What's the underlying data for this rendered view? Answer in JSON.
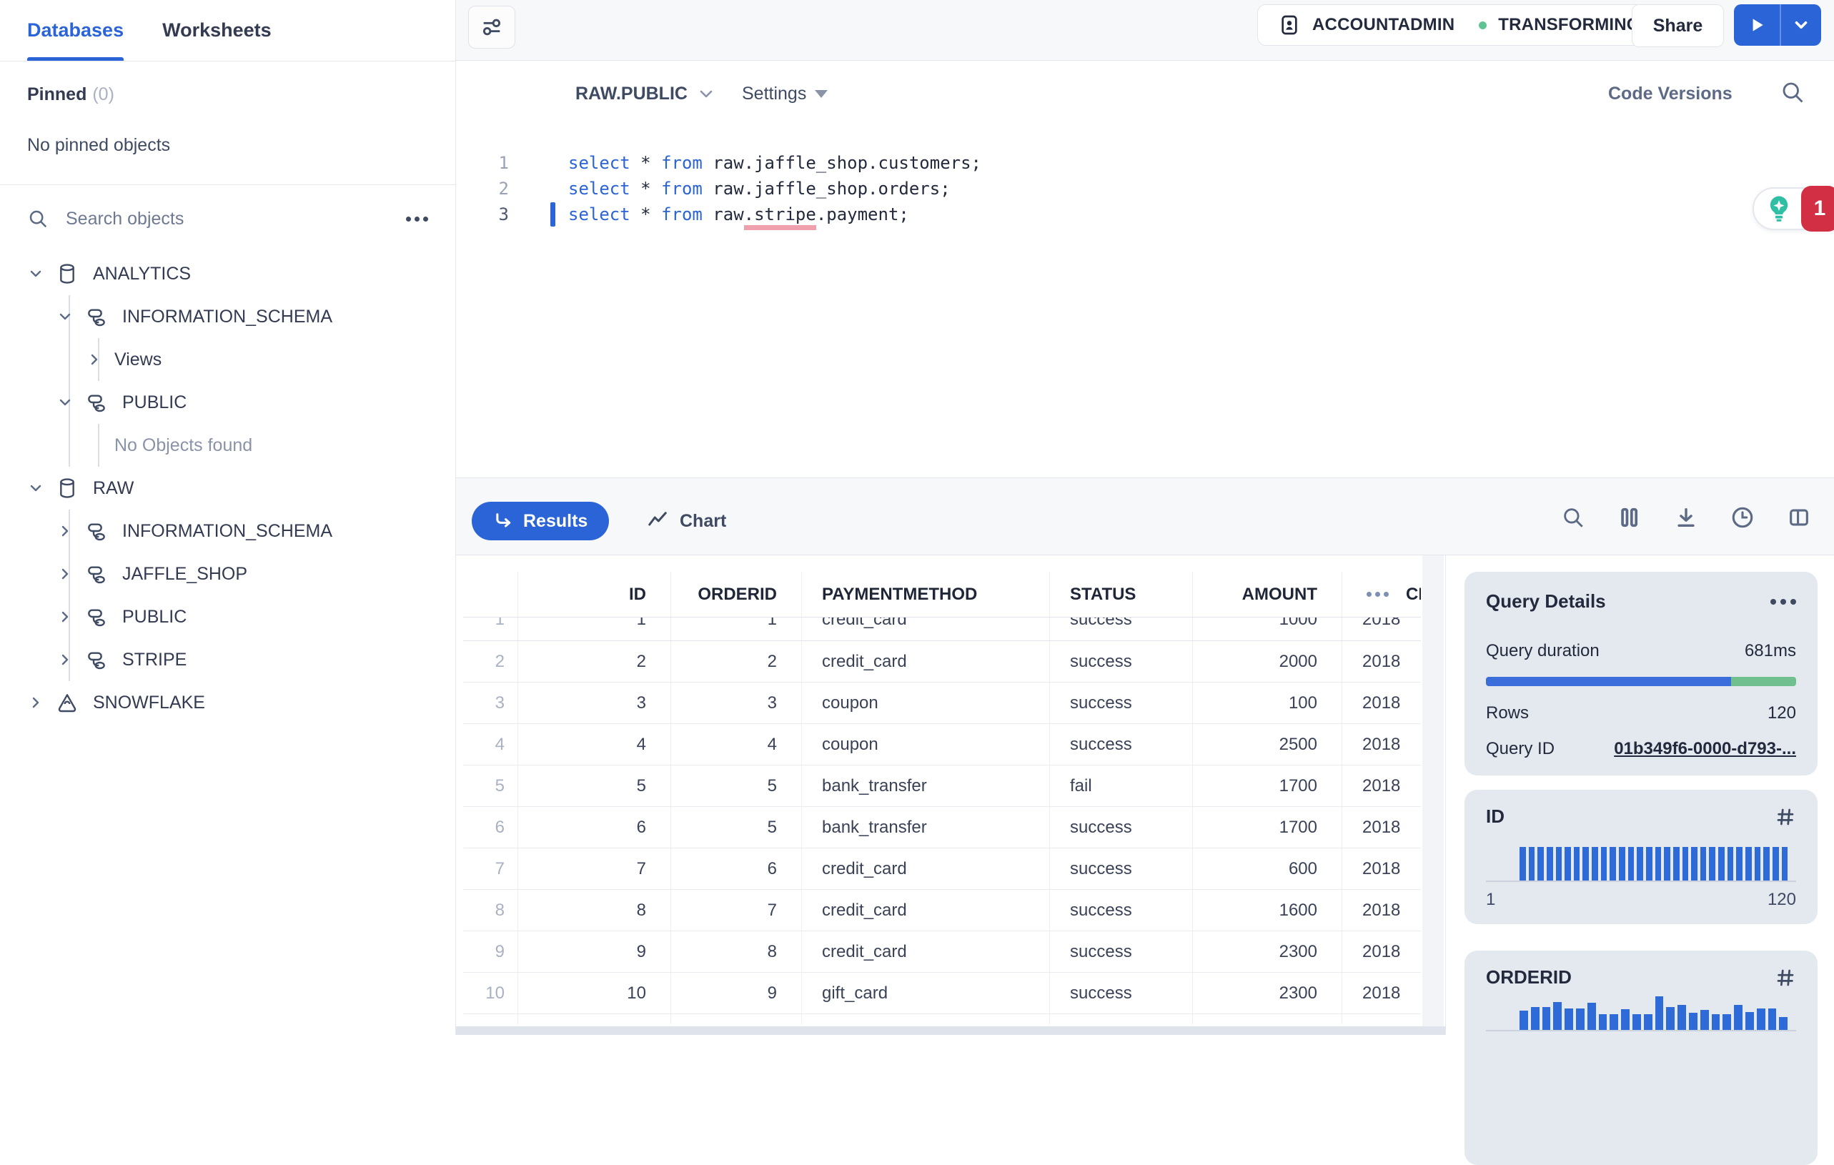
{
  "sidebar": {
    "tabs": [
      {
        "label": "Databases",
        "active": true
      },
      {
        "label": "Worksheets",
        "active": false
      }
    ],
    "pinned_label": "Pinned",
    "pinned_count": "(0)",
    "no_pinned_text": "No pinned objects",
    "search_placeholder": "Search objects",
    "tree": [
      {
        "label": "ANALYTICS",
        "level": 0,
        "chevron": "expanded",
        "icon": "database"
      },
      {
        "label": "INFORMATION_SCHEMA",
        "level": 1,
        "chevron": "expanded",
        "icon": "schema"
      },
      {
        "label": "Views",
        "level": 2,
        "chevron": "collapsed",
        "icon": null
      },
      {
        "label": "PUBLIC",
        "level": 1,
        "chevron": "expanded",
        "icon": "schema"
      },
      {
        "label": "No Objects found",
        "level": 2,
        "chevron": null,
        "icon": null,
        "muted": true
      },
      {
        "label": "RAW",
        "level": 0,
        "chevron": "expanded",
        "icon": "database"
      },
      {
        "label": "INFORMATION_SCHEMA",
        "level": 1,
        "chevron": "collapsed",
        "icon": "schema"
      },
      {
        "label": "JAFFLE_SHOP",
        "level": 1,
        "chevron": "collapsed",
        "icon": "schema"
      },
      {
        "label": "PUBLIC",
        "level": 1,
        "chevron": "collapsed",
        "icon": "schema"
      },
      {
        "label": "STRIPE",
        "level": 1,
        "chevron": "collapsed",
        "icon": "schema"
      },
      {
        "label": "SNOWFLAKE",
        "level": 0,
        "chevron": "collapsed",
        "icon": "snowflake-db"
      }
    ]
  },
  "topbar": {
    "role": "ACCOUNTADMIN",
    "warehouse": "TRANSFORMING",
    "share_label": "Share"
  },
  "editor_toolbar": {
    "context_selector": "RAW.PUBLIC",
    "settings_label": "Settings",
    "code_versions_label": "Code Versions"
  },
  "editor": {
    "lines": [
      {
        "num": "1",
        "active": false,
        "tokens": [
          [
            "kw",
            "select"
          ],
          [
            "pl",
            " * "
          ],
          [
            "kw",
            "from"
          ],
          [
            "pl",
            " raw.jaffle_shop.customers;"
          ]
        ]
      },
      {
        "num": "2",
        "active": false,
        "tokens": [
          [
            "kw",
            "select"
          ],
          [
            "pl",
            " * "
          ],
          [
            "kw",
            "from"
          ],
          [
            "pl",
            " raw.jaffle_shop.orders;"
          ]
        ]
      },
      {
        "num": "3",
        "active": true,
        "tokens": [
          [
            "kw",
            "select"
          ],
          [
            "pl",
            " * "
          ],
          [
            "kw",
            "from"
          ],
          [
            "pl",
            " raw"
          ],
          [
            "err",
            ".stripe"
          ],
          [
            "pl",
            ".payment;"
          ]
        ]
      }
    ],
    "copilot_badge_count": "1"
  },
  "results_bar": {
    "results_tab": "Results",
    "chart_tab": "Chart"
  },
  "table": {
    "columns": [
      "ID",
      "ORDERID",
      "PAYMENTMETHOD",
      "STATUS",
      "AMOUNT",
      "CREATED"
    ],
    "partial_row": {
      "n": "1",
      "cells": [
        "1",
        "1",
        "credit_card",
        "success",
        "1000",
        "2018"
      ]
    },
    "rows": [
      {
        "n": "2",
        "cells": [
          "2",
          "2",
          "credit_card",
          "success",
          "2000",
          "2018"
        ]
      },
      {
        "n": "3",
        "cells": [
          "3",
          "3",
          "coupon",
          "success",
          "100",
          "2018"
        ]
      },
      {
        "n": "4",
        "cells": [
          "4",
          "4",
          "coupon",
          "success",
          "2500",
          "2018"
        ]
      },
      {
        "n": "5",
        "cells": [
          "5",
          "5",
          "bank_transfer",
          "fail",
          "1700",
          "2018"
        ]
      },
      {
        "n": "6",
        "cells": [
          "6",
          "5",
          "bank_transfer",
          "success",
          "1700",
          "2018"
        ]
      },
      {
        "n": "7",
        "cells": [
          "7",
          "6",
          "credit_card",
          "success",
          "600",
          "2018"
        ]
      },
      {
        "n": "8",
        "cells": [
          "8",
          "7",
          "credit_card",
          "success",
          "1600",
          "2018"
        ]
      },
      {
        "n": "9",
        "cells": [
          "9",
          "8",
          "credit_card",
          "success",
          "2300",
          "2018"
        ]
      },
      {
        "n": "10",
        "cells": [
          "10",
          "9",
          "gift_card",
          "success",
          "2300",
          "2018"
        ]
      }
    ]
  },
  "query_details": {
    "title": "Query Details",
    "duration_label": "Query duration",
    "duration_value": "681ms",
    "duration_split": [
      0.79,
      0.21
    ],
    "rows_label": "Rows",
    "rows_value": "120",
    "query_id_label": "Query ID",
    "query_id_value": "01b349f6-0000-d793-..."
  },
  "column_cards": [
    {
      "title": "ID",
      "min_label": "1",
      "max_label": "120",
      "bar_heights": [
        48,
        48,
        48,
        48,
        48,
        48,
        48,
        48,
        48,
        48,
        48,
        48,
        48,
        48,
        48,
        48,
        48,
        48,
        48,
        48,
        48,
        48,
        48,
        48,
        48,
        48,
        48,
        48,
        48,
        48
      ]
    },
    {
      "title": "ORDERID",
      "bar_heights": [
        28,
        33,
        33,
        40,
        31,
        31,
        39,
        23,
        23,
        30,
        23,
        23,
        48,
        33,
        36,
        25,
        29,
        23,
        23,
        36,
        26,
        31,
        31,
        19
      ]
    }
  ],
  "icons": {
    "filter": "sliders",
    "search": "magnifier",
    "ellipsis": "three-dots",
    "account": "person-badge",
    "run": "play-triangle",
    "run-options": "chevron-down",
    "results": "return-arrow",
    "chart": "zigzag-line",
    "columns": "column-bars",
    "download": "arrow-down-line",
    "history": "clock",
    "split-view": "split-panel",
    "hash": "number-sign",
    "copilot": "lightbulb-sparkle",
    "database": "cylinder",
    "schema": "stacked-shapes",
    "snowflake-db": "rounded-triangle"
  },
  "colors": {
    "accent_blue": "#2b64d6",
    "bar_blue": "#2e6ad8",
    "progress_blue": "#3b6edb",
    "progress_green": "#6fc08e",
    "status_green_dot": "#5fc493",
    "badge_red": "#d22f45",
    "copilot_teal": "#2fbfa4",
    "error_underline": "#f0a0ac",
    "card_bg": "#e4e8ef",
    "toolbar_bg": "#f7f8fa"
  }
}
